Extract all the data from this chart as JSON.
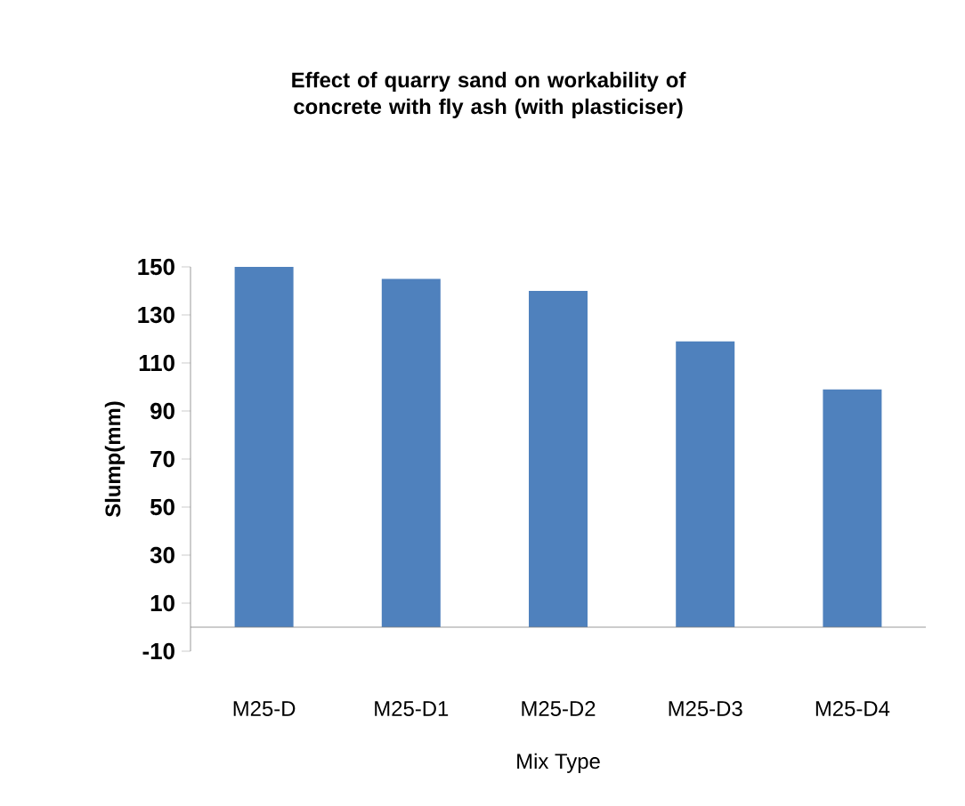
{
  "chart_data": {
    "type": "bar",
    "title": "Effect of quarry sand  on workability of concrete with fly ash (with plasticiser)",
    "xlabel": "Mix Type",
    "ylabel": "Slump(mm)",
    "categories": [
      "M25-D",
      "M25-D1",
      "M25-D2",
      "M25-D3",
      "M25-D4"
    ],
    "values": [
      150,
      145,
      140,
      119,
      99
    ],
    "color": "#4f81bd",
    "ylim": [
      -10,
      150
    ],
    "yticks": [
      -10,
      10,
      30,
      50,
      70,
      90,
      110,
      130,
      150
    ],
    "grid": false
  }
}
